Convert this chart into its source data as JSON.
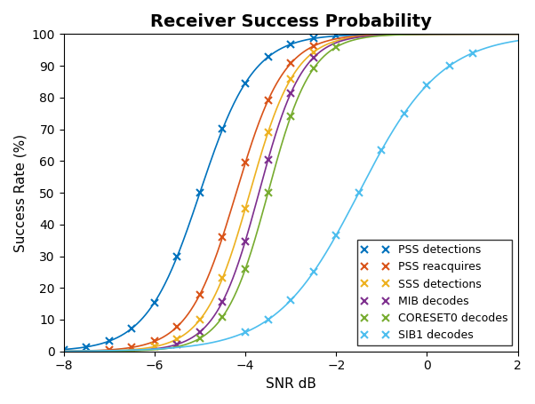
{
  "title": "Receiver Success Probability",
  "xlabel": "SNR dB",
  "ylabel": "Success Rate (%)",
  "xlim": [
    -8,
    2
  ],
  "ylim": [
    0,
    100
  ],
  "xticks": [
    -8,
    -6,
    -4,
    -2,
    0,
    2
  ],
  "yticks": [
    0,
    10,
    20,
    30,
    40,
    50,
    60,
    70,
    80,
    90,
    100
  ],
  "series": [
    {
      "label": "PSS detections",
      "color": "#0072BD",
      "midpoint": -5.0,
      "steepness": 1.7,
      "marker_x": [
        -8,
        -7.5,
        -7,
        -6.5,
        -6,
        -5.5,
        -5,
        -4.5,
        -4,
        -3.5,
        -3,
        -2.5,
        -2
      ]
    },
    {
      "label": "PSS reacquires",
      "color": "#D95319",
      "midpoint": -4.2,
      "steepness": 1.9,
      "marker_x": [
        -7,
        -6.5,
        -6,
        -5.5,
        -5,
        -4.5,
        -4,
        -3.5,
        -3,
        -2.5
      ]
    },
    {
      "label": "SSS detections",
      "color": "#EDB120",
      "midpoint": -3.9,
      "steepness": 2.0,
      "marker_x": [
        -6,
        -5.5,
        -5,
        -4.5,
        -4,
        -3.5,
        -3,
        -2.5
      ]
    },
    {
      "label": "MIB decodes",
      "color": "#7E2F8E",
      "midpoint": -3.7,
      "steepness": 2.1,
      "marker_x": [
        -5.5,
        -5,
        -4.5,
        -4,
        -3.5,
        -3,
        -2.5
      ]
    },
    {
      "label": "CORESET0 decodes",
      "color": "#77AC30",
      "midpoint": -3.5,
      "steepness": 2.1,
      "marker_x": [
        -5,
        -4.5,
        -4,
        -3.5,
        -3,
        -2.5,
        -2
      ]
    },
    {
      "label": "SIB1 decodes",
      "color": "#4DBEEE",
      "midpoint": -1.5,
      "steepness": 1.1,
      "marker_x": [
        -4,
        -3.5,
        -3,
        -2.5,
        -2,
        -1.5,
        -1,
        -0.5,
        0,
        0.5,
        1
      ]
    }
  ],
  "legend_loc": "lower right",
  "title_fontsize": 14,
  "label_fontsize": 11,
  "tick_fontsize": 10
}
